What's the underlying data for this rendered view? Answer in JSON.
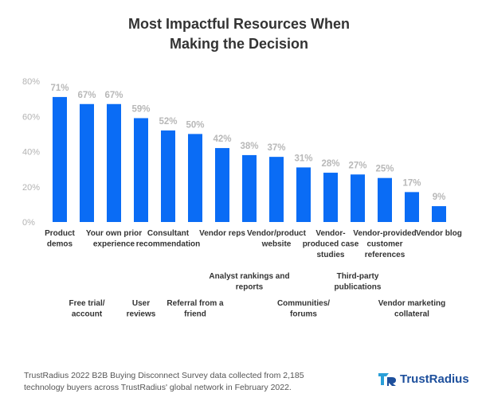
{
  "chart_data": {
    "type": "bar",
    "title_lines": [
      "Most Impactful Resources When",
      "Making the Decision"
    ],
    "categories": [
      "Product demos",
      "Free trial/ account",
      "Your own prior experience",
      "User reviews",
      "Consultant recommendation",
      "Referral from a friend",
      "Vendor reps",
      "Analyst rankings and reports",
      "Vendor/product website",
      "Communities/ forums",
      "Vendor-produced case studies",
      "Third-party publications",
      "Vendor-provided customer references",
      "Vendor marketing collateral",
      "Vendor blog"
    ],
    "label_lines": [
      [
        "Product",
        "demos"
      ],
      [
        "Free trial/",
        "account"
      ],
      [
        "Your own prior",
        "experience"
      ],
      [
        "User",
        "reviews"
      ],
      [
        "Consultant",
        "recommendation"
      ],
      [
        "Referral from a",
        "friend"
      ],
      [
        "Vendor reps"
      ],
      [
        "Analyst rankings and",
        "reports"
      ],
      [
        "Vendor/product",
        "website"
      ],
      [
        "Communities/",
        "forums"
      ],
      [
        "Vendor-",
        "produced case",
        "studies"
      ],
      [
        "Third-party",
        "publications"
      ],
      [
        "Vendor-provided",
        "customer",
        "references"
      ],
      [
        "Vendor marketing",
        "collateral"
      ],
      [
        "Vendor blog"
      ]
    ],
    "label_row": [
      0,
      1,
      0,
      1,
      0,
      1,
      0,
      2,
      0,
      1,
      0,
      2,
      0,
      1,
      0
    ],
    "values": [
      71,
      67,
      67,
      59,
      52,
      50,
      42,
      38,
      37,
      31,
      28,
      27,
      25,
      17,
      9
    ],
    "value_labels": [
      "71%",
      "67%",
      "67%",
      "59%",
      "52%",
      "50%",
      "42%",
      "38%",
      "37%",
      "31%",
      "28%",
      "27%",
      "25%",
      "17%",
      "9%"
    ],
    "ylim": [
      0,
      80
    ],
    "yticks": [
      0,
      20,
      40,
      60,
      80
    ],
    "ytick_labels": [
      "0%",
      "20%",
      "40%",
      "60%",
      "80%"
    ],
    "bar_color": "#0a6cf5",
    "gridlines": false
  },
  "footer": {
    "note": "TrustRadius 2022 B2B Buying Disconnect Survey data collected from 2,185 technology buyers across TrustRadius' global network in February 2022.",
    "logo_text": "TrustRadius",
    "logo_icon": "trustradius-logo-icon"
  }
}
